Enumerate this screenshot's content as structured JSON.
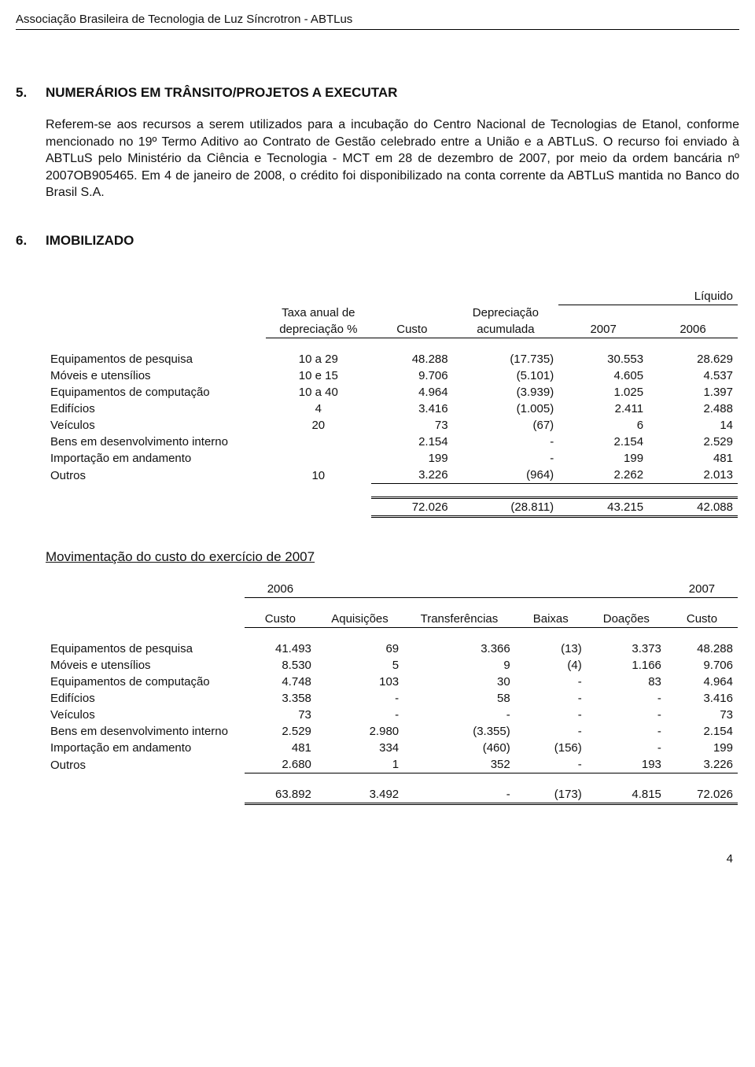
{
  "header": {
    "org_name": "Associação Brasileira de Tecnologia de Luz Síncrotron - ABTLus"
  },
  "section5": {
    "number": "5.",
    "title": "NUMERÁRIOS EM TRÂNSITO/PROJETOS A EXECUTAR",
    "paragraph": "Referem-se aos recursos a serem utilizados para a incubação do Centro Nacional de Tecnologias de Etanol, conforme mencionado no 19º Termo Aditivo ao Contrato de Gestão celebrado entre a União e a ABTLuS. O recurso foi enviado à ABTLuS pelo Ministério da Ciência e Tecnologia - MCT em 28 de dezembro de 2007, por meio da ordem bancária nº 2007OB905465. Em 4 de janeiro de 2008, o crédito foi disponibilizado na conta corrente da ABTLuS mantida no Banco do Brasil S.A."
  },
  "section6": {
    "number": "6.",
    "title": "IMOBILIZADO",
    "headers": {
      "liquido": "Líquido",
      "taxa1": "Taxa anual de",
      "taxa2": "depreciação %",
      "custo": "Custo",
      "dep1": "Depreciação",
      "dep2": "acumulada",
      "y2007": "2007",
      "y2006": "2006"
    },
    "rows": [
      {
        "label": "Equipamentos de pesquisa",
        "taxa": "10 a 29",
        "custo": "48.288",
        "dep": "(17.735)",
        "v07": "30.553",
        "v06": "28.629"
      },
      {
        "label": "Móveis e utensílios",
        "taxa": "10 e 15",
        "custo": "9.706",
        "dep": "(5.101)",
        "v07": "4.605",
        "v06": "4.537"
      },
      {
        "label": "Equipamentos de computação",
        "taxa": "10 a 40",
        "custo": "4.964",
        "dep": "(3.939)",
        "v07": "1.025",
        "v06": "1.397"
      },
      {
        "label": "Edifícios",
        "taxa": "4",
        "custo": "3.416",
        "dep": "(1.005)",
        "v07": "2.411",
        "v06": "2.488"
      },
      {
        "label": "Veículos",
        "taxa": "20",
        "custo": "73",
        "dep": "(67)",
        "v07": "6",
        "v06": "14"
      },
      {
        "label": "Bens em desenvolvimento interno",
        "taxa": "",
        "custo": "2.154",
        "dep": "-",
        "v07": "2.154",
        "v06": "2.529"
      },
      {
        "label": "Importação em andamento",
        "taxa": "",
        "custo": "199",
        "dep": "-",
        "v07": "199",
        "v06": "481"
      },
      {
        "label": "Outros",
        "taxa": "10",
        "custo": "3.226",
        "dep": "(964)",
        "v07": "2.262",
        "v06": "2.013"
      }
    ],
    "total": {
      "custo": "72.026",
      "dep": "(28.811)",
      "v07": "43.215",
      "v06": "42.088"
    }
  },
  "movement": {
    "heading": "Movimentação do custo do exercício de 2007",
    "headers": {
      "y2006": "2006",
      "y2007": "2007",
      "custo": "Custo",
      "aquis": "Aquisições",
      "transf": "Transferências",
      "baixas": "Baixas",
      "doacoes": "Doações",
      "custo2": "Custo"
    },
    "rows": [
      {
        "label": "Equipamentos de pesquisa",
        "c06": "41.493",
        "aq": "69",
        "tr": "3.366",
        "bx": "(13)",
        "do": "3.373",
        "c07": "48.288"
      },
      {
        "label": "Móveis e utensílios",
        "c06": "8.530",
        "aq": "5",
        "tr": "9",
        "bx": "(4)",
        "do": "1.166",
        "c07": "9.706"
      },
      {
        "label": "Equipamentos de computação",
        "c06": "4.748",
        "aq": "103",
        "tr": "30",
        "bx": "-",
        "do": "83",
        "c07": "4.964"
      },
      {
        "label": "Edifícios",
        "c06": "3.358",
        "aq": "-",
        "tr": "58",
        "bx": "-",
        "do": "-",
        "c07": "3.416"
      },
      {
        "label": "Veículos",
        "c06": "73",
        "aq": "-",
        "tr": "-",
        "bx": "-",
        "do": "-",
        "c07": "73"
      },
      {
        "label": "Bens em desenvolvimento interno",
        "c06": "2.529",
        "aq": "2.980",
        "tr": "(3.355)",
        "bx": "-",
        "do": "-",
        "c07": "2.154"
      },
      {
        "label": "Importação em andamento",
        "c06": "481",
        "aq": "334",
        "tr": "(460)",
        "bx": "(156)",
        "do": "-",
        "c07": "199"
      },
      {
        "label": "Outros",
        "c06": "2.680",
        "aq": "1",
        "tr": "352",
        "bx": "-",
        "do": "193",
        "c07": "3.226"
      }
    ],
    "total": {
      "c06": "63.892",
      "aq": "3.492",
      "tr": "-",
      "bx": "(173)",
      "do": "4.815",
      "c07": "72.026"
    }
  },
  "page_number": "4"
}
